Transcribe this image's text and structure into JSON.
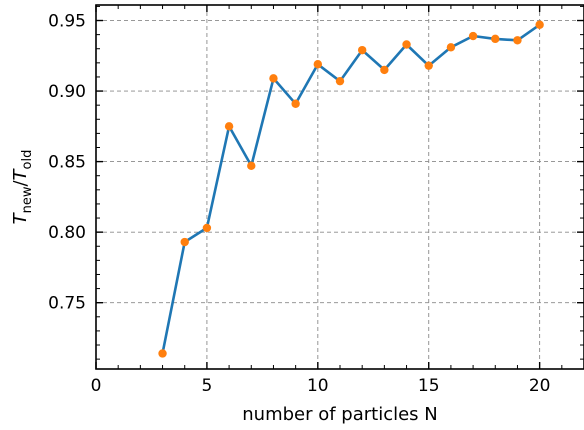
{
  "chart_data": {
    "type": "line",
    "title": "",
    "xlabel": "number of particles N",
    "ylabel": {
      "base_main": "T",
      "sub_main": "new",
      "slash": "/",
      "base_den": "T",
      "sub_den": "old"
    },
    "xlim": [
      0,
      22
    ],
    "ylim": [
      0.703,
      0.961
    ],
    "xticks": [
      0,
      5,
      10,
      15,
      20
    ],
    "xtick_labels": [
      "0",
      "5",
      "10",
      "15",
      "20"
    ],
    "yticks": [
      0.75,
      0.8,
      0.85,
      0.9,
      0.95
    ],
    "ytick_labels": [
      "0.75",
      "0.80",
      "0.85",
      "0.90",
      "0.95"
    ],
    "grid": true,
    "series": [
      {
        "line_color": "#1f77b4",
        "marker_color": "#ff7f0e",
        "x": [
          3,
          4,
          5,
          6,
          7,
          8,
          9,
          10,
          11,
          12,
          13,
          14,
          15,
          16,
          17,
          18,
          19,
          20
        ],
        "y": [
          0.714,
          0.793,
          0.803,
          0.875,
          0.847,
          0.909,
          0.891,
          0.919,
          0.907,
          0.929,
          0.915,
          0.933,
          0.918,
          0.931,
          0.939,
          0.937,
          0.936,
          0.947
        ]
      }
    ]
  }
}
